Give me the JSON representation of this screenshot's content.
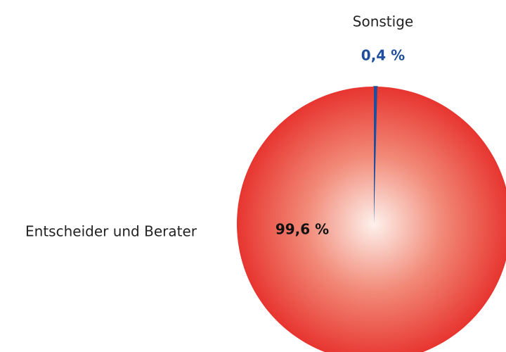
{
  "chart_data": {
    "type": "pie",
    "categories": [
      "Entscheider und Berater",
      "Sonstige"
    ],
    "values": [
      99.6,
      0.4
    ],
    "value_labels": [
      "99,6 %",
      "0,4 %"
    ],
    "colors": [
      "#e52421",
      "#1f4e9c"
    ]
  }
}
